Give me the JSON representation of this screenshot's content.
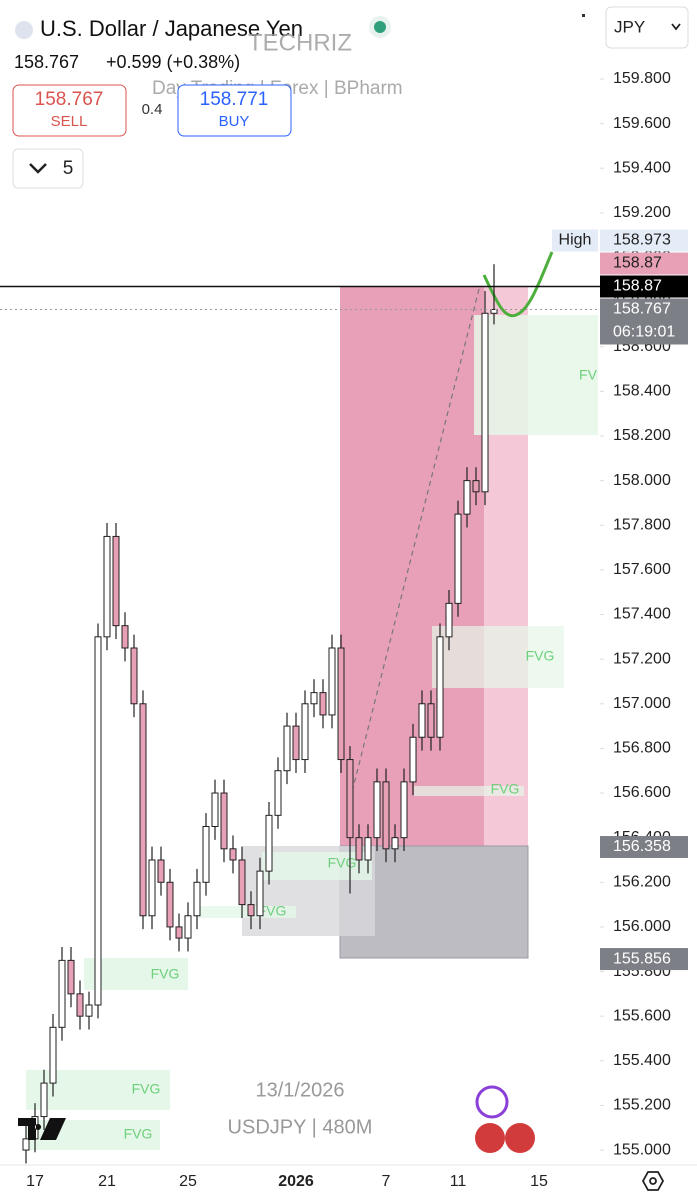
{
  "header": {
    "symbol": "U.S. Dollar / Japanese Yen",
    "price": "158.767",
    "change": "+0.599 (+0.38%)",
    "sell_price": "158.767",
    "sell": "SELL",
    "spread": "0.4",
    "buy_price": "158.771",
    "buy": "BUY",
    "count": "5",
    "currency": "JPY",
    "author": "TECHRIZ",
    "tagline": "Day Trading | Forex | BPharm"
  },
  "chart_data": {
    "type": "candlestick",
    "categories": [
      null,
      "17",
      null,
      null,
      null,
      null,
      null,
      null,
      null,
      "21",
      null,
      null,
      null,
      null,
      null,
      null,
      null,
      null,
      "25",
      null,
      null,
      null,
      null,
      null,
      null,
      null,
      null,
      null,
      null,
      null,
      "2026",
      null,
      null,
      null,
      null,
      null,
      null,
      null,
      null,
      null,
      "7",
      null,
      null,
      null,
      null,
      null,
      null,
      null,
      "11",
      null,
      null,
      null,
      null,
      null,
      null,
      null,
      null,
      "15"
    ],
    "series": [
      {
        "name": "open",
        "values": [
          155.0,
          155.05,
          155.15,
          155.3,
          155.55,
          155.85,
          155.7,
          155.6,
          155.65,
          157.3,
          157.75,
          157.35,
          157.25,
          157.0,
          156.05,
          156.3,
          156.2,
          156.0,
          155.95,
          156.05,
          156.2,
          156.45,
          156.6,
          156.35,
          156.3,
          156.1,
          156.05,
          156.25,
          156.5,
          156.7,
          156.9,
          156.75,
          157.0,
          157.05,
          156.95,
          157.25,
          156.75,
          156.4,
          156.3,
          156.4,
          156.65,
          156.35,
          156.4,
          156.65,
          156.85,
          157.0,
          156.85,
          157.3,
          157.45,
          157.85,
          158.0,
          157.95,
          158.75,
          null,
          null,
          null,
          null,
          null
        ]
      },
      {
        "name": "high",
        "values": [
          155.11,
          155.21,
          155.36,
          155.61,
          155.91,
          155.91,
          155.76,
          155.71,
          157.36,
          157.81,
          157.81,
          157.41,
          157.31,
          157.06,
          156.36,
          156.36,
          156.26,
          156.06,
          156.11,
          156.26,
          156.51,
          156.66,
          156.66,
          156.41,
          156.36,
          156.16,
          156.31,
          156.56,
          156.76,
          156.96,
          156.96,
          157.06,
          157.11,
          157.11,
          157.31,
          157.31,
          156.81,
          156.46,
          156.46,
          156.71,
          156.71,
          156.46,
          156.71,
          156.91,
          157.06,
          157.06,
          157.36,
          157.51,
          157.91,
          158.06,
          158.06,
          158.85,
          158.97,
          null,
          null,
          null,
          null,
          null
        ]
      },
      {
        "name": "low",
        "values": [
          154.94,
          154.99,
          155.09,
          155.24,
          155.49,
          155.64,
          155.54,
          155.54,
          155.59,
          157.24,
          157.29,
          157.19,
          156.94,
          155.99,
          155.99,
          156.14,
          155.94,
          155.89,
          155.89,
          155.99,
          156.14,
          156.39,
          156.29,
          156.24,
          156.04,
          155.99,
          155.99,
          156.19,
          156.44,
          156.64,
          156.69,
          156.69,
          156.94,
          156.89,
          156.89,
          156.69,
          156.15,
          156.24,
          156.24,
          156.34,
          156.29,
          156.29,
          156.34,
          156.59,
          156.79,
          156.79,
          156.79,
          157.24,
          157.39,
          157.79,
          157.89,
          157.89,
          158.7,
          null,
          null,
          null,
          null,
          null
        ]
      },
      {
        "name": "close",
        "values": [
          155.05,
          155.15,
          155.3,
          155.55,
          155.85,
          155.7,
          155.6,
          155.65,
          157.3,
          157.75,
          157.35,
          157.25,
          157.0,
          156.05,
          156.3,
          156.2,
          156.0,
          155.95,
          156.05,
          156.2,
          156.45,
          156.6,
          156.35,
          156.3,
          156.1,
          156.05,
          156.25,
          156.5,
          156.7,
          156.9,
          156.75,
          157.0,
          157.05,
          156.95,
          157.25,
          156.75,
          156.4,
          156.3,
          156.4,
          156.65,
          156.35,
          156.4,
          156.65,
          156.85,
          157.0,
          156.85,
          157.3,
          157.45,
          157.85,
          158.0,
          157.95,
          158.75,
          158.767,
          null,
          null,
          null,
          null,
          null
        ]
      }
    ],
    "up_color": "#ffffff",
    "down_color": "#e8a0b6",
    "ylim": [
      154.933,
      160.154
    ],
    "yticks": [
      {
        "value": 155.0,
        "label": "155.000"
      },
      {
        "value": 155.2,
        "label": "155.200"
      },
      {
        "value": 155.4,
        "label": "155.400"
      },
      {
        "value": 155.6,
        "label": "155.600"
      },
      {
        "value": 155.8,
        "label": "155.800"
      },
      {
        "value": 156.0,
        "label": "156.000"
      },
      {
        "value": 156.2,
        "label": "156.200"
      },
      {
        "value": 156.4,
        "label": "156.400"
      },
      {
        "value": 156.6,
        "label": "156.600"
      },
      {
        "value": 156.8,
        "label": "156.800"
      },
      {
        "value": 157.0,
        "label": "157.000"
      },
      {
        "value": 157.2,
        "label": "157.200"
      },
      {
        "value": 157.4,
        "label": "157.400"
      },
      {
        "value": 157.6,
        "label": "157.600"
      },
      {
        "value": 157.8,
        "label": "157.800"
      },
      {
        "value": 158.0,
        "label": "158.000"
      },
      {
        "value": 158.2,
        "label": "158.200"
      },
      {
        "value": 158.4,
        "label": "158.400"
      },
      {
        "value": 158.6,
        "label": "158.600"
      },
      {
        "value": 158.8,
        "label": "158.800"
      },
      {
        "value": 159.0,
        "label": "159.000"
      },
      {
        "value": 159.2,
        "label": "159.200"
      },
      {
        "value": 159.4,
        "label": "159.400"
      },
      {
        "value": 159.6,
        "label": "159.600"
      },
      {
        "value": 159.8,
        "label": "159.800"
      }
    ],
    "price_labels": [
      {
        "value": 158.87,
        "bg": "#000000",
        "fg": "#ffffff",
        "line": "solid"
      },
      {
        "value": 158.767,
        "bg": "#7d7f86",
        "fg": "#ffffff",
        "time": "06:19:01",
        "line": "dotted"
      },
      {
        "value": 158.87,
        "bg": "#e8a0b6",
        "fg": "#222222"
      },
      {
        "value": 158.973,
        "bg": "#e4ecf8",
        "fg": "#222222",
        "tag": "High"
      },
      {
        "value": 156.358,
        "bg": "#7d7f86",
        "fg": "#ffffff"
      },
      {
        "value": 155.856,
        "bg": "#7d7f86",
        "fg": "#ffffff"
      }
    ],
    "annotations": [
      "FV",
      "FVG",
      "FVG",
      "FVG",
      "FVG",
      "FVG",
      "FVG",
      "FVG"
    ],
    "date_note": "13/1/2026",
    "interval_note": "USDJPY | 480M"
  }
}
